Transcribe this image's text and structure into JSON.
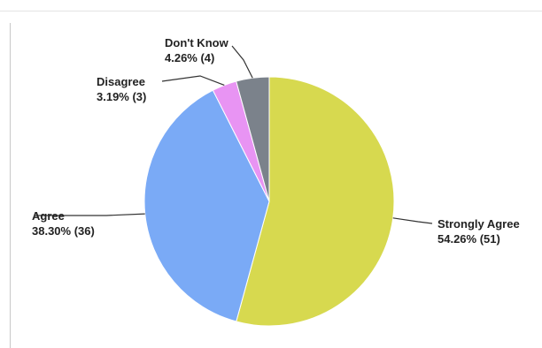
{
  "chart_data": {
    "type": "pie",
    "title": "",
    "start_angle_deg": 0,
    "direction": "clockwise",
    "slices": [
      {
        "label": "Strongly Agree",
        "percent_label": "54.26%",
        "count_label": "(51)",
        "percent": 54.26,
        "count": 51,
        "color": "#d7d94f"
      },
      {
        "label": "Agree",
        "percent_label": "38.30%",
        "count_label": "(36)",
        "percent": 38.3,
        "count": 36,
        "color": "#7aaaf6"
      },
      {
        "label": "Disagree",
        "percent_label": "3.19%",
        "count_label": "(3)",
        "percent": 3.19,
        "count": 3,
        "color": "#e894f3"
      },
      {
        "label": "Don't Know",
        "percent_label": "4.26%",
        "count_label": "(4)",
        "percent": 4.26,
        "count": 4,
        "color": "#7b828b"
      }
    ]
  }
}
